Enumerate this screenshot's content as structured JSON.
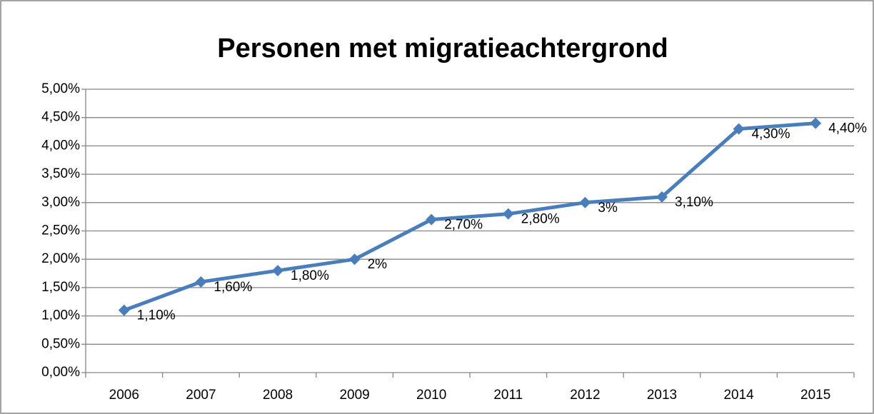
{
  "chart_data": {
    "type": "line",
    "title": "Personen met migratieachtergrond",
    "categories": [
      "2006",
      "2007",
      "2008",
      "2009",
      "2010",
      "2011",
      "2012",
      "2013",
      "2014",
      "2015"
    ],
    "series": [
      {
        "name": "Personen met migratieachtergrond",
        "color": "#4a7ebb",
        "values": [
          1.1,
          1.6,
          1.8,
          2,
          2.7,
          2.8,
          3,
          3.1,
          4.3,
          4.4
        ],
        "value_labels": [
          "1,10%",
          "1,60%",
          "1,80%",
          "2%",
          "2,70%",
          "2,80%",
          "3%",
          "3,10%",
          "4,30%",
          "4,40%"
        ]
      }
    ],
    "ylim": [
      0,
      5
    ],
    "yticks": [
      {
        "value": 0,
        "label": "0,00%"
      },
      {
        "value": 0.5,
        "label": "0,50%"
      },
      {
        "value": 1,
        "label": "1,00%"
      },
      {
        "value": 1.5,
        "label": "1,50%"
      },
      {
        "value": 2,
        "label": "2,00%"
      },
      {
        "value": 2.5,
        "label": "2,50%"
      },
      {
        "value": 3,
        "label": "3,00%"
      },
      {
        "value": 3.5,
        "label": "3,50%"
      },
      {
        "value": 4,
        "label": "4,00%"
      },
      {
        "value": 4.5,
        "label": "4,50%"
      },
      {
        "value": 5,
        "label": "5,00%"
      }
    ],
    "grid": true
  }
}
